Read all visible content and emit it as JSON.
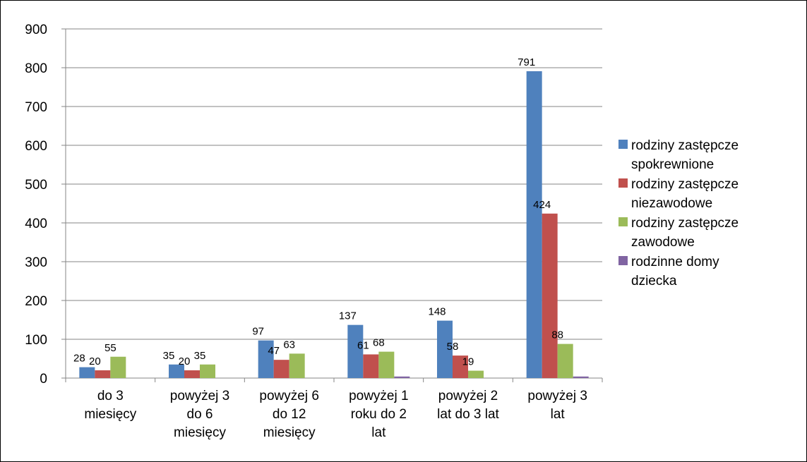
{
  "chart_data": {
    "type": "bar",
    "title": "",
    "xlabel": "",
    "ylabel": "",
    "ylim": [
      0,
      900
    ],
    "yticks": [
      0,
      100,
      200,
      300,
      400,
      500,
      600,
      700,
      800,
      900
    ],
    "grid": true,
    "legend_position": "right",
    "categories": [
      [
        "do 3",
        "miesięcy"
      ],
      [
        "powyżej 3",
        "do 6",
        "miesięcy"
      ],
      [
        "powyżej 6",
        "do 12",
        "miesięcy"
      ],
      [
        "powyżej 1",
        "roku do 2",
        "lat"
      ],
      [
        "powyżej 2",
        "lat do 3 lat"
      ],
      [
        "powyżej 3",
        "lat"
      ]
    ],
    "series": [
      {
        "name": [
          "rodziny zastępcze",
          "spokrewnione"
        ],
        "color": "#4f81bd",
        "values": [
          28,
          35,
          97,
          137,
          148,
          791
        ],
        "labels": [
          "28",
          "35",
          "97",
          "137",
          "148",
          "791"
        ]
      },
      {
        "name": [
          "rodziny zastępcze",
          "niezawodowe"
        ],
        "color": "#c0504d",
        "values": [
          20,
          20,
          47,
          61,
          58,
          424
        ],
        "labels": [
          "20",
          "20",
          "47",
          "61",
          "58",
          "424"
        ]
      },
      {
        "name": [
          "rodziny zastępcze",
          "zawodowe"
        ],
        "color": "#9bbb59",
        "values": [
          55,
          35,
          63,
          68,
          19,
          88
        ],
        "labels": [
          "55",
          "35",
          "63",
          "68",
          "19",
          "88"
        ]
      },
      {
        "name": [
          "rodzinne domy",
          "dziecka"
        ],
        "color": "#8064a2",
        "values": [
          0,
          0,
          0,
          4,
          0,
          4
        ],
        "labels": [
          "",
          "",
          "",
          "",
          "",
          ""
        ]
      }
    ]
  }
}
